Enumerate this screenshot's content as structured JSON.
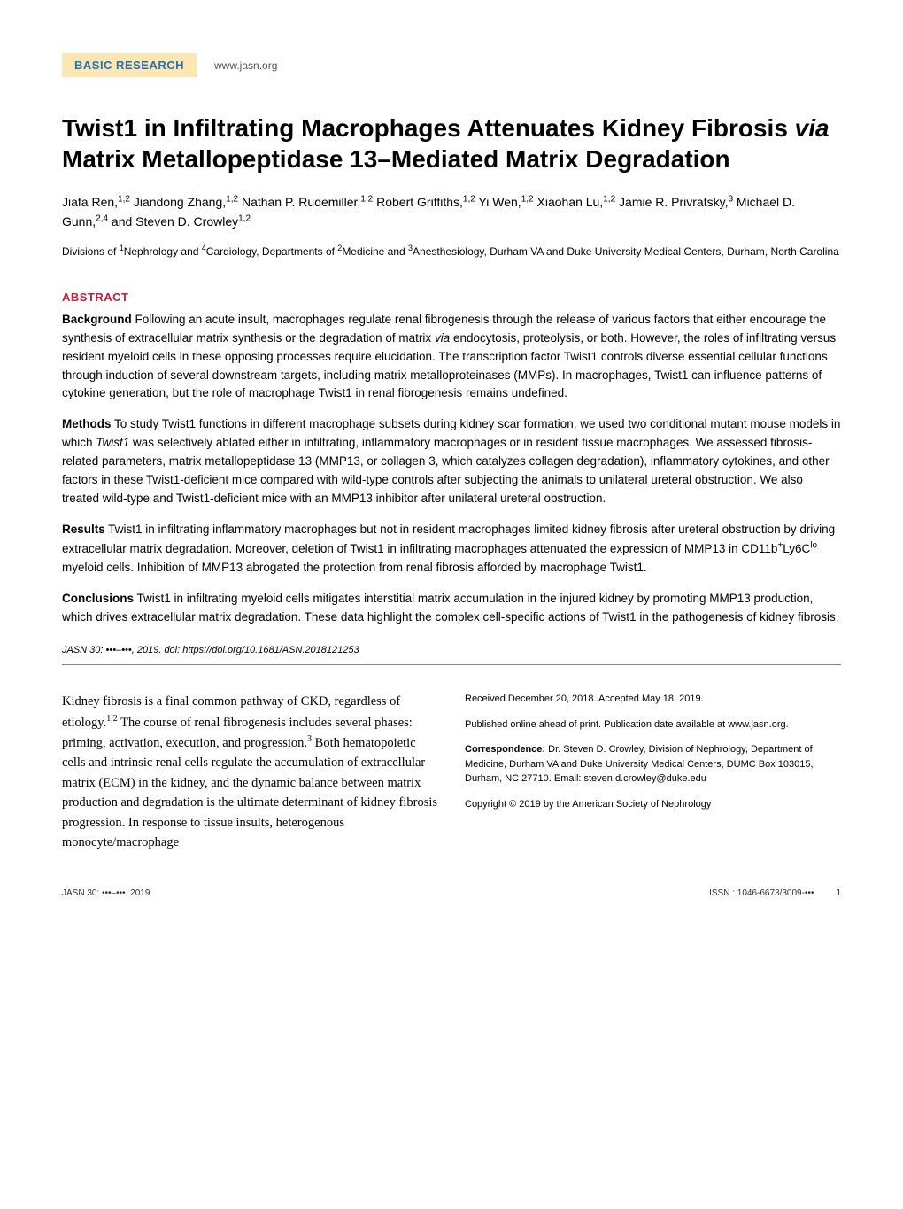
{
  "header": {
    "badge": "BASIC RESEARCH",
    "url": "www.jasn.org",
    "badge_bg": "#fbe7b3",
    "badge_color": "#2a6fb5"
  },
  "title": {
    "part1": "Twist1 in Infiltrating Macrophages Attenuates Kidney Fibrosis ",
    "italic": "via",
    "part2": " Matrix Metallopeptidase 13–Mediated Matrix Degradation",
    "fontsize": 28
  },
  "authors_html": "Jiafa Ren,<sup>1,2</sup> Jiandong Zhang,<sup>1,2</sup> Nathan P. Rudemiller,<sup>1,2</sup> Robert Griffiths,<sup>1,2</sup> Yi Wen,<sup>1,2</sup> Xiaohan Lu,<sup>1,2</sup> Jamie R. Privratsky,<sup>3</sup> Michael D. Gunn,<sup>2,4</sup> and Steven D. Crowley<sup>1,2</sup>",
  "affiliations_html": "Divisions of <sup>1</sup>Nephrology and <sup>4</sup>Cardiology, Departments of <sup>2</sup>Medicine and <sup>3</sup>Anesthesiology, Durham VA and Duke University Medical Centers, Durham, North Carolina",
  "abstract": {
    "heading": "ABSTRACT",
    "heading_color": "#c41e3a",
    "background": {
      "label": "Background",
      "text_html": " Following an acute insult, macrophages regulate renal fibrogenesis through the release of various factors that either encourage the synthesis of extracellular matrix synthesis or the degradation of matrix <span class=\"italic\">via</span> endocytosis, proteolysis, or both. However, the roles of infiltrating versus resident myeloid cells in these opposing processes require elucidation. The transcription factor Twist1 controls diverse essential cellular functions through induction of several downstream targets, including matrix metalloproteinases (MMPs). In macrophages, Twist1 can influence patterns of cytokine generation, but the role of macrophage Twist1 in renal fibrogenesis remains undefined."
    },
    "methods": {
      "label": "Methods",
      "text_html": " To study Twist1 functions in different macrophage subsets during kidney scar formation, we used two conditional mutant mouse models in which <span class=\"italic\">Twist1</span> was selectively ablated either in infiltrating, inflammatory macrophages or in resident tissue macrophages. We assessed fibrosis-related parameters, matrix metallopeptidase 13 (MMP13, or collagen 3, which catalyzes collagen degradation), inflammatory cytokines, and other factors in these Twist1-deficient mice compared with wild-type controls after subjecting the animals to unilateral ureteral obstruction. We also treated wild-type and Twist1-deficient mice with an MMP13 inhibitor after unilateral ureteral obstruction."
    },
    "results": {
      "label": "Results",
      "text_html": " Twist1 in infiltrating inflammatory macrophages but not in resident macrophages limited kidney fibrosis after ureteral obstruction by driving extracellular matrix degradation. Moreover, deletion of Twist1 in infiltrating macrophages attenuated the expression of MMP13 in CD11b<sup>+</sup>Ly6C<sup>lo</sup> myeloid cells. Inhibition of MMP13 abrogated the protection from renal fibrosis afforded by macrophage Twist1."
    },
    "conclusions": {
      "label": "Conclusions",
      "text_html": " Twist1 in infiltrating myeloid cells mitigates interstitial matrix accumulation in the injured kidney by promoting MMP13 production, which drives extracellular matrix degradation. These data highlight the complex cell-specific actions of Twist1 in the pathogenesis of kidney fibrosis."
    }
  },
  "citation": "JASN 30: •••–•••, 2019. doi: https://doi.org/10.1681/ASN.2018121253",
  "body_left_html": "Kidney fibrosis is a final common pathway of CKD, regardless of etiology.<sup>1,2</sup> The course of renal fibrogenesis includes several phases: priming, activation, execution, and progression.<sup>3</sup> Both hematopoietic cells and intrinsic renal cells regulate the accumulation of extracellular matrix (ECM) in the kidney, and the dynamic balance between matrix production and degradation is the ultimate determinant of kidney fibrosis progression. In response to tissue insults, heterogenous monocyte/macrophage",
  "meta": {
    "received": "Received December 20, 2018. Accepted May 18, 2019.",
    "published": "Published online ahead of print. Publication date available at www.jasn.org.",
    "correspondence_label": "Correspondence:",
    "correspondence_text": " Dr. Steven D. Crowley, Division of Nephrology, Department of Medicine, Durham VA and Duke University Medical Centers, DUMC Box 103015, Durham, NC 27710. Email: steven.d.crowley@duke.edu",
    "copyright": "Copyright © 2019 by the American Society of Nephrology"
  },
  "footer": {
    "left": "JASN 30: •••–•••, 2019",
    "issn": "ISSN : 1046-6673/3009-•••",
    "page": "1"
  },
  "colors": {
    "background": "#ffffff",
    "text": "#000000",
    "accent_red": "#c41e3a",
    "badge_bg": "#fbe7b3",
    "badge_text": "#2a6fb5"
  }
}
